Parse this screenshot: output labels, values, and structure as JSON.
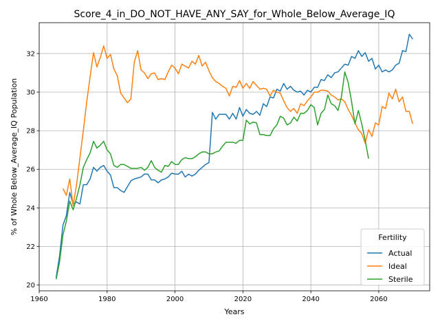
{
  "chart_data": {
    "type": "line",
    "title": "Score_4_in_DO_NOT_HAVE_ANY_SAY_for_Whole_Below_Average_IQ",
    "xlabel": "Years",
    "ylabel": "% of Whole Below_Average_IQ Population",
    "xlim": [
      1960,
      2075
    ],
    "ylim": [
      19.7,
      33.6
    ],
    "xticks": [
      1960,
      1980,
      2000,
      2020,
      2040,
      2060
    ],
    "yticks": [
      20,
      22,
      24,
      26,
      28,
      30,
      32
    ],
    "grid": true,
    "legend": {
      "title": "Fertility",
      "position": "lower-right"
    },
    "series": [
      {
        "name": "Actual",
        "color": "#1f77b4",
        "points": [
          [
            1965,
            20.4
          ],
          [
            1966,
            21.5
          ],
          [
            1967,
            23.1
          ],
          [
            1968,
            23.6
          ],
          [
            1969,
            24.8
          ],
          [
            1970,
            24.2
          ],
          [
            1971,
            24.3
          ],
          [
            1972,
            24.2
          ],
          [
            1973,
            25.2
          ],
          [
            1974,
            25.2
          ],
          [
            1975,
            25.5
          ],
          [
            1976,
            26.1
          ],
          [
            1977,
            25.9
          ],
          [
            1978,
            26.1
          ],
          [
            1979,
            26.2
          ],
          [
            1980,
            25.9
          ],
          [
            1981,
            25.7
          ],
          [
            1982,
            25.05
          ],
          [
            1983,
            25.05
          ],
          [
            1984,
            24.9
          ],
          [
            1985,
            24.8
          ],
          [
            1986,
            25.1
          ],
          [
            1987,
            25.4
          ],
          [
            1988,
            25.5
          ],
          [
            1989,
            25.55
          ],
          [
            1990,
            25.6
          ],
          [
            1991,
            25.75
          ],
          [
            1992,
            25.75
          ],
          [
            1993,
            25.45
          ],
          [
            1994,
            25.45
          ],
          [
            1995,
            25.3
          ],
          [
            1996,
            25.45
          ],
          [
            1997,
            25.5
          ],
          [
            1998,
            25.6
          ],
          [
            1999,
            25.8
          ],
          [
            2000,
            25.75
          ],
          [
            2001,
            25.75
          ],
          [
            2002,
            25.9
          ],
          [
            2003,
            25.6
          ],
          [
            2004,
            25.75
          ],
          [
            2005,
            25.65
          ],
          [
            2006,
            25.75
          ],
          [
            2007,
            25.95
          ],
          [
            2008,
            26.1
          ],
          [
            2009,
            26.25
          ],
          [
            2010,
            26.35
          ],
          [
            2011,
            28.95
          ],
          [
            2012,
            28.6
          ],
          [
            2013,
            28.85
          ],
          [
            2014,
            28.85
          ],
          [
            2015,
            28.85
          ],
          [
            2016,
            28.6
          ],
          [
            2017,
            28.9
          ],
          [
            2018,
            28.6
          ],
          [
            2019,
            29.2
          ],
          [
            2020,
            28.75
          ],
          [
            2021,
            29.1
          ],
          [
            2022,
            28.9
          ],
          [
            2023,
            28.85
          ],
          [
            2024,
            29.0
          ],
          [
            2025,
            28.8
          ],
          [
            2026,
            29.4
          ],
          [
            2027,
            29.25
          ],
          [
            2028,
            29.75
          ],
          [
            2029,
            29.7
          ],
          [
            2030,
            30.15
          ],
          [
            2031,
            30.05
          ],
          [
            2032,
            30.45
          ],
          [
            2033,
            30.15
          ],
          [
            2034,
            30.3
          ],
          [
            2035,
            30.1
          ],
          [
            2036,
            30.0
          ],
          [
            2037,
            30.05
          ],
          [
            2038,
            29.85
          ],
          [
            2039,
            30.1
          ],
          [
            2040,
            30.0
          ],
          [
            2041,
            30.25
          ],
          [
            2042,
            30.25
          ],
          [
            2043,
            30.65
          ],
          [
            2044,
            30.6
          ],
          [
            2045,
            30.9
          ],
          [
            2046,
            30.75
          ],
          [
            2047,
            31.0
          ],
          [
            2048,
            31.05
          ],
          [
            2049,
            31.25
          ],
          [
            2050,
            31.45
          ],
          [
            2051,
            31.4
          ],
          [
            2052,
            31.85
          ],
          [
            2053,
            31.75
          ],
          [
            2054,
            32.15
          ],
          [
            2055,
            31.85
          ],
          [
            2056,
            32.05
          ],
          [
            2057,
            31.6
          ],
          [
            2058,
            31.75
          ],
          [
            2059,
            31.2
          ],
          [
            2060,
            31.4
          ],
          [
            2061,
            31.05
          ],
          [
            2062,
            31.15
          ],
          [
            2063,
            31.05
          ],
          [
            2064,
            31.15
          ],
          [
            2065,
            31.4
          ],
          [
            2066,
            31.5
          ],
          [
            2067,
            32.15
          ],
          [
            2068,
            32.1
          ],
          [
            2069,
            33.0
          ],
          [
            2070,
            32.75
          ]
        ]
      },
      {
        "name": "Ideal",
        "color": "#ff7f0e",
        "points": [
          [
            1967,
            25.0
          ],
          [
            1968,
            24.65
          ],
          [
            1969,
            25.5
          ],
          [
            1970,
            24.1
          ],
          [
            1971,
            25.2
          ],
          [
            1972,
            26.6
          ],
          [
            1973,
            28.0
          ],
          [
            1974,
            29.5
          ],
          [
            1975,
            30.8
          ],
          [
            1976,
            32.05
          ],
          [
            1977,
            31.3
          ],
          [
            1978,
            31.8
          ],
          [
            1979,
            32.4
          ],
          [
            1980,
            31.75
          ],
          [
            1981,
            31.95
          ],
          [
            1982,
            31.2
          ],
          [
            1983,
            30.85
          ],
          [
            1984,
            29.95
          ],
          [
            1985,
            29.7
          ],
          [
            1986,
            29.45
          ],
          [
            1987,
            29.65
          ],
          [
            1988,
            31.55
          ],
          [
            1989,
            32.15
          ],
          [
            1990,
            31.15
          ],
          [
            1991,
            31.0
          ],
          [
            1992,
            30.7
          ],
          [
            1993,
            30.95
          ],
          [
            1994,
            31.0
          ],
          [
            1995,
            30.65
          ],
          [
            1996,
            30.7
          ],
          [
            1997,
            30.65
          ],
          [
            1998,
            31.05
          ],
          [
            1999,
            31.4
          ],
          [
            2000,
            31.25
          ],
          [
            2001,
            30.95
          ],
          [
            2002,
            31.45
          ],
          [
            2003,
            31.35
          ],
          [
            2004,
            31.25
          ],
          [
            2005,
            31.6
          ],
          [
            2006,
            31.45
          ],
          [
            2007,
            31.9
          ],
          [
            2008,
            31.35
          ],
          [
            2009,
            31.55
          ],
          [
            2010,
            31.1
          ],
          [
            2011,
            30.75
          ],
          [
            2012,
            30.55
          ],
          [
            2013,
            30.45
          ],
          [
            2014,
            30.3
          ],
          [
            2015,
            30.2
          ],
          [
            2016,
            29.8
          ],
          [
            2017,
            30.3
          ],
          [
            2018,
            30.25
          ],
          [
            2019,
            30.6
          ],
          [
            2020,
            30.2
          ],
          [
            2021,
            30.45
          ],
          [
            2022,
            30.2
          ],
          [
            2023,
            30.55
          ],
          [
            2024,
            30.35
          ],
          [
            2025,
            30.15
          ],
          [
            2026,
            30.2
          ],
          [
            2027,
            30.15
          ],
          [
            2028,
            29.8
          ],
          [
            2029,
            30.1
          ],
          [
            2030,
            30.0
          ],
          [
            2031,
            29.95
          ],
          [
            2032,
            29.55
          ],
          [
            2033,
            29.2
          ],
          [
            2034,
            29.0
          ],
          [
            2035,
            29.15
          ],
          [
            2036,
            28.9
          ],
          [
            2037,
            29.4
          ],
          [
            2038,
            29.3
          ],
          [
            2039,
            29.55
          ],
          [
            2040,
            29.75
          ],
          [
            2041,
            30.0
          ],
          [
            2042,
            30.0
          ],
          [
            2043,
            30.1
          ],
          [
            2044,
            30.1
          ],
          [
            2045,
            30.05
          ],
          [
            2046,
            29.85
          ],
          [
            2047,
            29.75
          ],
          [
            2048,
            29.6
          ],
          [
            2049,
            29.65
          ],
          [
            2050,
            29.5
          ],
          [
            2051,
            29.1
          ],
          [
            2052,
            28.8
          ],
          [
            2053,
            28.4
          ],
          [
            2054,
            28.05
          ],
          [
            2055,
            27.85
          ],
          [
            2056,
            27.35
          ],
          [
            2057,
            28.05
          ],
          [
            2058,
            27.7
          ],
          [
            2059,
            28.4
          ],
          [
            2060,
            28.3
          ],
          [
            2061,
            29.25
          ],
          [
            2062,
            29.15
          ],
          [
            2063,
            29.95
          ],
          [
            2064,
            29.65
          ],
          [
            2065,
            30.15
          ],
          [
            2066,
            29.5
          ],
          [
            2067,
            29.75
          ],
          [
            2068,
            29.0
          ],
          [
            2069,
            29.0
          ],
          [
            2070,
            28.35
          ]
        ]
      },
      {
        "name": "Sterile",
        "color": "#2ca02c",
        "points": [
          [
            1965,
            20.3
          ],
          [
            1966,
            21.2
          ],
          [
            1967,
            22.6
          ],
          [
            1968,
            23.3
          ],
          [
            1969,
            24.35
          ],
          [
            1970,
            23.9
          ],
          [
            1971,
            24.5
          ],
          [
            1972,
            25.2
          ],
          [
            1973,
            26.1
          ],
          [
            1974,
            26.5
          ],
          [
            1975,
            26.85
          ],
          [
            1976,
            27.45
          ],
          [
            1977,
            27.1
          ],
          [
            1978,
            27.25
          ],
          [
            1979,
            27.45
          ],
          [
            1980,
            27.0
          ],
          [
            1981,
            26.8
          ],
          [
            1982,
            26.2
          ],
          [
            1983,
            26.1
          ],
          [
            1984,
            26.25
          ],
          [
            1985,
            26.25
          ],
          [
            1986,
            26.15
          ],
          [
            1987,
            26.05
          ],
          [
            1988,
            26.05
          ],
          [
            1989,
            26.05
          ],
          [
            1990,
            26.1
          ],
          [
            1991,
            25.95
          ],
          [
            1992,
            26.1
          ],
          [
            1993,
            26.45
          ],
          [
            1994,
            26.1
          ],
          [
            1995,
            25.95
          ],
          [
            1996,
            25.85
          ],
          [
            1997,
            26.2
          ],
          [
            1998,
            26.15
          ],
          [
            1999,
            26.4
          ],
          [
            2000,
            26.25
          ],
          [
            2001,
            26.25
          ],
          [
            2002,
            26.5
          ],
          [
            2003,
            26.6
          ],
          [
            2004,
            26.55
          ],
          [
            2005,
            26.55
          ],
          [
            2006,
            26.65
          ],
          [
            2007,
            26.8
          ],
          [
            2008,
            26.9
          ],
          [
            2009,
            26.9
          ],
          [
            2010,
            26.8
          ],
          [
            2011,
            26.8
          ],
          [
            2012,
            26.9
          ],
          [
            2013,
            26.95
          ],
          [
            2014,
            27.2
          ],
          [
            2015,
            27.4
          ],
          [
            2016,
            27.4
          ],
          [
            2017,
            27.4
          ],
          [
            2018,
            27.35
          ],
          [
            2019,
            27.5
          ],
          [
            2020,
            27.5
          ],
          [
            2021,
            28.55
          ],
          [
            2022,
            28.35
          ],
          [
            2023,
            28.45
          ],
          [
            2024,
            28.4
          ],
          [
            2025,
            27.8
          ],
          [
            2026,
            27.8
          ],
          [
            2027,
            27.75
          ],
          [
            2028,
            27.75
          ],
          [
            2029,
            28.1
          ],
          [
            2030,
            28.3
          ],
          [
            2031,
            28.75
          ],
          [
            2032,
            28.65
          ],
          [
            2033,
            28.3
          ],
          [
            2034,
            28.4
          ],
          [
            2035,
            28.7
          ],
          [
            2036,
            28.5
          ],
          [
            2037,
            28.9
          ],
          [
            2038,
            28.9
          ],
          [
            2039,
            29.05
          ],
          [
            2040,
            29.35
          ],
          [
            2041,
            29.2
          ],
          [
            2042,
            28.3
          ],
          [
            2043,
            28.9
          ],
          [
            2044,
            29.1
          ],
          [
            2045,
            29.85
          ],
          [
            2046,
            29.4
          ],
          [
            2047,
            29.3
          ],
          [
            2048,
            29.05
          ],
          [
            2049,
            29.75
          ],
          [
            2050,
            31.05
          ],
          [
            2051,
            30.5
          ],
          [
            2052,
            29.5
          ],
          [
            2053,
            28.35
          ],
          [
            2054,
            29.05
          ],
          [
            2055,
            28.35
          ],
          [
            2056,
            27.5
          ],
          [
            2057,
            26.55
          ]
        ]
      }
    ]
  }
}
